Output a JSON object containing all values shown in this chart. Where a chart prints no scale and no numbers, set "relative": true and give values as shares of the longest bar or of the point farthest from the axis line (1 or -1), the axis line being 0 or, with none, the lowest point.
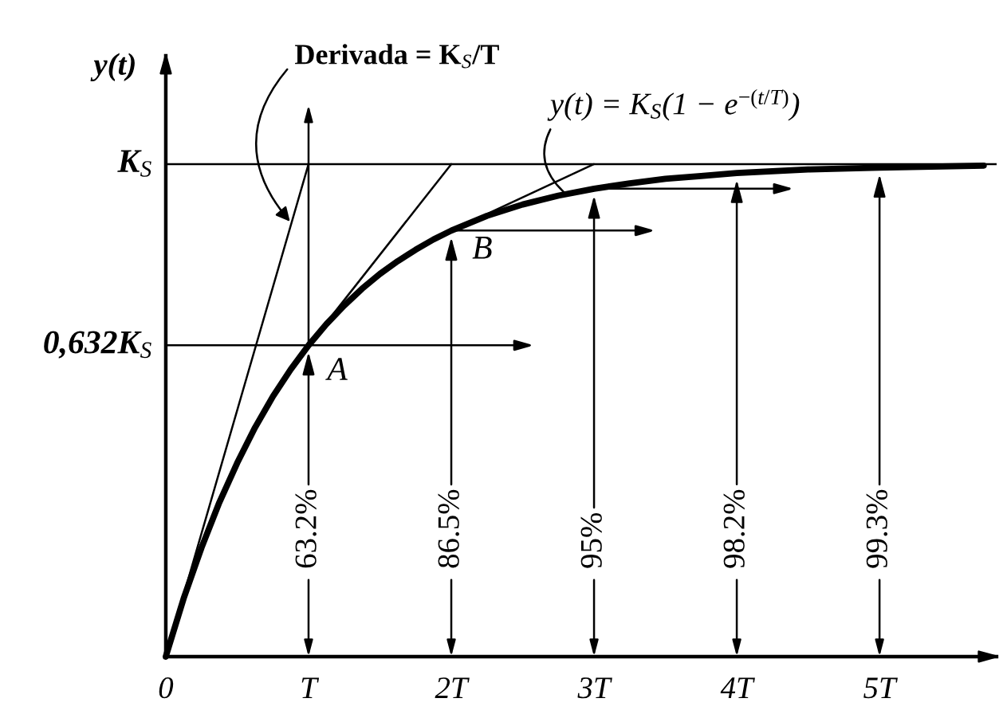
{
  "chart_data": {
    "type": "line",
    "ylabel": "y(t)",
    "relative": true,
    "series": [
      {
        "color": "#000000",
        "x": [
          0,
          0.125,
          0.25,
          0.375,
          0.5,
          0.625,
          0.75,
          0.875,
          1,
          1.125,
          1.25,
          1.375,
          1.5,
          1.625,
          1.75,
          1.875,
          2,
          2.25,
          2.5,
          2.75,
          3,
          3.25,
          3.5,
          3.75,
          4,
          4.5,
          5,
          5.73
        ],
        "values": [
          0,
          0.118,
          0.221,
          0.313,
          0.393,
          0.465,
          0.528,
          0.583,
          0.632,
          0.675,
          0.713,
          0.747,
          0.777,
          0.803,
          0.826,
          0.847,
          0.865,
          0.895,
          0.918,
          0.936,
          0.95,
          0.961,
          0.97,
          0.976,
          0.982,
          0.989,
          0.993,
          0.997
        ]
      },
      {
        "color": "#000000",
        "x": [
          0,
          1
        ],
        "values": [
          0,
          1
        ]
      },
      {
        "color": "#000000",
        "x": [
          1,
          2
        ],
        "values": [
          0.632,
          1
        ]
      },
      {
        "color": "#000000",
        "x": [
          2,
          3
        ],
        "values": [
          0.865,
          1
        ]
      },
      {
        "color": "#000000",
        "x": [
          0,
          2.55
        ],
        "values": [
          0.632,
          0.632
        ]
      },
      {
        "color": "#000000",
        "x": [
          2,
          3.4
        ],
        "values": [
          0.865,
          0.865
        ]
      },
      {
        "color": "#000000",
        "x": [
          3,
          4.37
        ],
        "values": [
          0.95,
          0.95
        ]
      }
    ],
    "xlim": [
      0,
      5.82
    ],
    "xticks": [
      0,
      {
        "value": 1,
        "label": "T"
      },
      {
        "value": 2,
        "label": "2T"
      },
      {
        "value": 3,
        "label": "3T"
      },
      {
        "value": 4,
        "label": "4T"
      },
      {
        "value": 5,
        "label": "5T"
      }
    ],
    "ref_lines": [
      {
        "axis": "y",
        "value": 1,
        "label": "K$_{S}$",
        "color": "#000000"
      }
    ],
    "annotations": [
      {
        "text": "63.2%",
        "x": 1,
        "y": 0.632
      },
      {
        "text": "86.5%",
        "x": 2,
        "y": 0.865
      },
      {
        "text": "95%",
        "x": 3,
        "y": 0.95
      },
      {
        "text": "98.2%",
        "x": 4,
        "y": 0.982
      },
      {
        "text": "99.3%",
        "x": 5,
        "y": 0.993
      },
      {
        "text": "A",
        "x": 1,
        "y": 0.632
      },
      {
        "text": "B",
        "x": 2,
        "y": 0.865
      },
      {
        "text": "Derivada = K$_{S}$/T",
        "x": 0.88,
        "y": 0.88
      },
      {
        "text": "y(t) = K$_{S}$(1 − e$^{−(t/T)}$)",
        "x": 2.8,
        "y": 0.94
      },
      {
        "text": "0,632K$_{S}$",
        "x": 0,
        "y": 0.632
      }
    ],
    "grid": false
  }
}
